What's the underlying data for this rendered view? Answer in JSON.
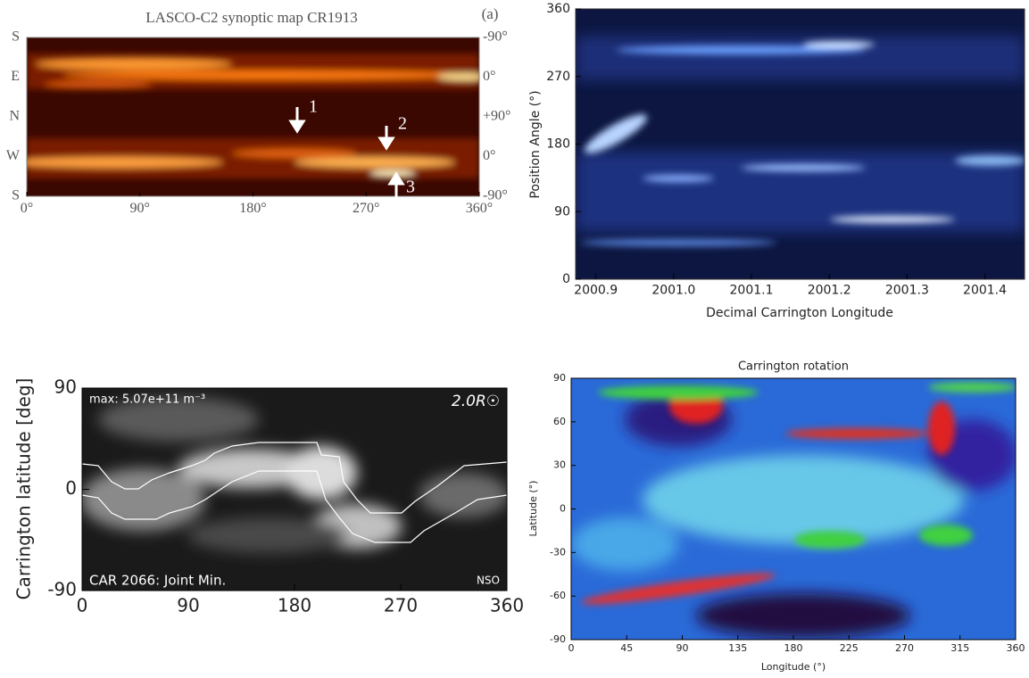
{
  "chart_data": [
    {
      "type": "heatmap",
      "title": "LASCO-C2 synoptic map CR1913",
      "panel_label": "(a)",
      "xlim": [
        0,
        360
      ],
      "xticks": [
        {
          "value": 0,
          "label": "0°"
        },
        {
          "value": 90,
          "label": "90°"
        },
        {
          "value": 180,
          "label": "180°"
        },
        {
          "value": 270,
          "label": "270°"
        },
        {
          "value": 360,
          "label": "360°"
        }
      ],
      "left_labels": [
        "S",
        "E",
        "N",
        "W",
        "S"
      ],
      "right_labels": [
        "-90°",
        "0°",
        "+90°",
        "0°",
        "-90°"
      ],
      "annotations": [
        "1",
        "2",
        "3"
      ]
    },
    {
      "type": "heatmap",
      "xlabel": "Decimal Carrington Longitude",
      "ylabel": "Position Angle (°)",
      "xlim": [
        2000.874,
        2001.451
      ],
      "ylim": [
        0,
        360
      ],
      "xticks": [
        2000.9,
        {
          "value": 2001,
          "label": "2001.0"
        },
        2001.1,
        2001.2,
        2001.3,
        2001.4
      ],
      "yticks": [
        0,
        90,
        180,
        270,
        360
      ]
    },
    {
      "type": "heatmap",
      "ylabel": "Carrington latitude [deg]",
      "xlim": [
        0,
        360
      ],
      "ylim": [
        -90,
        90
      ],
      "xticks": [
        0,
        90,
        180,
        270,
        360
      ],
      "yticks": [
        -90,
        0,
        90
      ],
      "annotations": [
        "max: 5.07e+11 m⁻³",
        "2.0R☉",
        "CAR 2066: Joint Min.",
        "NSO"
      ]
    },
    {
      "type": "heatmap",
      "title": "Carrington rotation",
      "xlabel": "Longitude (°)",
      "ylabel": "Latitude (°)",
      "xlim": [
        0,
        360
      ],
      "ylim": [
        -90,
        90
      ],
      "xticks": [
        0,
        45,
        90,
        135,
        180,
        225,
        270,
        315,
        360
      ],
      "yticks": [
        -90,
        -60,
        -30,
        0,
        30,
        60,
        90
      ]
    }
  ]
}
